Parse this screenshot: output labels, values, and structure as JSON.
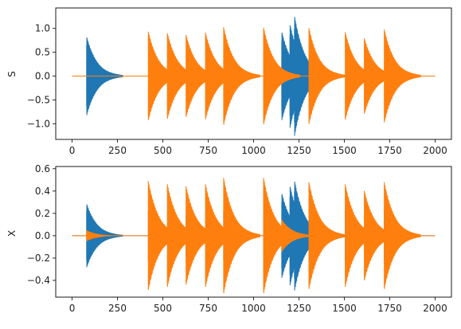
{
  "figure": {
    "background": "#ffffff",
    "series_colors": [
      "#1f77b4",
      "#ff7f0e"
    ]
  },
  "chart_data": [
    {
      "type": "line",
      "ylabel": "S",
      "xlabel": "",
      "xlim": [
        -90,
        2090
      ],
      "ylim": [
        -1.33,
        1.43
      ],
      "xticks": [
        0,
        250,
        500,
        750,
        1000,
        1250,
        1500,
        1750,
        2000
      ],
      "yticks": [
        -1.0,
        -0.5,
        0.0,
        0.5,
        1.0
      ],
      "ytick_labels": [
        "−1.0",
        "−0.5",
        "0.0",
        "0.5",
        "1.0"
      ],
      "grid": false,
      "x": [
        0,
        2000
      ],
      "series": [
        {
          "color": "#1f77b4",
          "signal": "decaying oscillation bursts",
          "bursts": [
            {
              "onset": 80,
              "amplitude": 0.87
            },
            {
              "onset": 1155,
              "amplitude": 0.98
            },
            {
              "onset": 1200,
              "amplitude": 1.15
            },
            {
              "onset": 1225,
              "amplitude": 1.33
            }
          ]
        },
        {
          "color": "#ff7f0e",
          "signal": "decaying oscillation bursts",
          "bursts": [
            {
              "onset": 420,
              "amplitude": 0.97
            },
            {
              "onset": 525,
              "amplitude": 0.94
            },
            {
              "onset": 628,
              "amplitude": 0.9
            },
            {
              "onset": 735,
              "amplitude": 0.95
            },
            {
              "onset": 835,
              "amplitude": 1.07
            },
            {
              "onset": 1055,
              "amplitude": 1.06
            },
            {
              "onset": 1305,
              "amplitude": 1.05
            },
            {
              "onset": 1505,
              "amplitude": 0.96
            },
            {
              "onset": 1610,
              "amplitude": 0.83
            },
            {
              "onset": 1720,
              "amplitude": 1.02
            }
          ]
        }
      ]
    },
    {
      "type": "line",
      "ylabel": "X",
      "xlabel": "",
      "xlim": [
        -90,
        2090
      ],
      "ylim": [
        -0.55,
        0.62
      ],
      "xticks": [
        0,
        250,
        500,
        750,
        1000,
        1250,
        1500,
        1750,
        2000
      ],
      "xtick_labels": [
        "0",
        "250",
        "500",
        "750",
        "1000",
        "1250",
        "1500",
        "1750",
        "2000"
      ],
      "yticks": [
        -0.4,
        -0.2,
        0.0,
        0.2,
        0.4,
        0.6
      ],
      "ytick_labels": [
        "−0.4",
        "−0.2",
        "0.0",
        "0.2",
        "0.4",
        "0.6"
      ],
      "grid": false,
      "x": [
        0,
        2000
      ],
      "series": [
        {
          "color": "#1f77b4",
          "signal": "decaying oscillation bursts",
          "bursts": [
            {
              "onset": 80,
              "amplitude": 0.3
            },
            {
              "onset": 420,
              "amplitude": 0.3
            },
            {
              "onset": 628,
              "amplitude": 0.25
            },
            {
              "onset": 835,
              "amplitude": 0.3
            },
            {
              "onset": 1055,
              "amplitude": 0.45
            },
            {
              "onset": 1155,
              "amplitude": 0.4
            },
            {
              "onset": 1200,
              "amplitude": 0.47
            },
            {
              "onset": 1225,
              "amplitude": 0.52
            },
            {
              "onset": 1305,
              "amplitude": 0.35
            },
            {
              "onset": 1505,
              "amplitude": 0.3
            },
            {
              "onset": 1720,
              "amplitude": 0.3
            }
          ]
        },
        {
          "color": "#ff7f0e",
          "signal": "decaying oscillation bursts",
          "bursts": [
            {
              "onset": 80,
              "amplitude": 0.05
            },
            {
              "onset": 420,
              "amplitude": 0.51
            },
            {
              "onset": 525,
              "amplitude": 0.48
            },
            {
              "onset": 628,
              "amplitude": 0.46
            },
            {
              "onset": 735,
              "amplitude": 0.48
            },
            {
              "onset": 835,
              "amplitude": 0.54
            },
            {
              "onset": 1055,
              "amplitude": 0.54
            },
            {
              "onset": 1155,
              "amplitude": 0.15
            },
            {
              "onset": 1305,
              "amplitude": 0.5
            },
            {
              "onset": 1505,
              "amplitude": 0.48
            },
            {
              "onset": 1610,
              "amplitude": 0.42
            },
            {
              "onset": 1720,
              "amplitude": 0.5
            }
          ]
        }
      ]
    }
  ]
}
